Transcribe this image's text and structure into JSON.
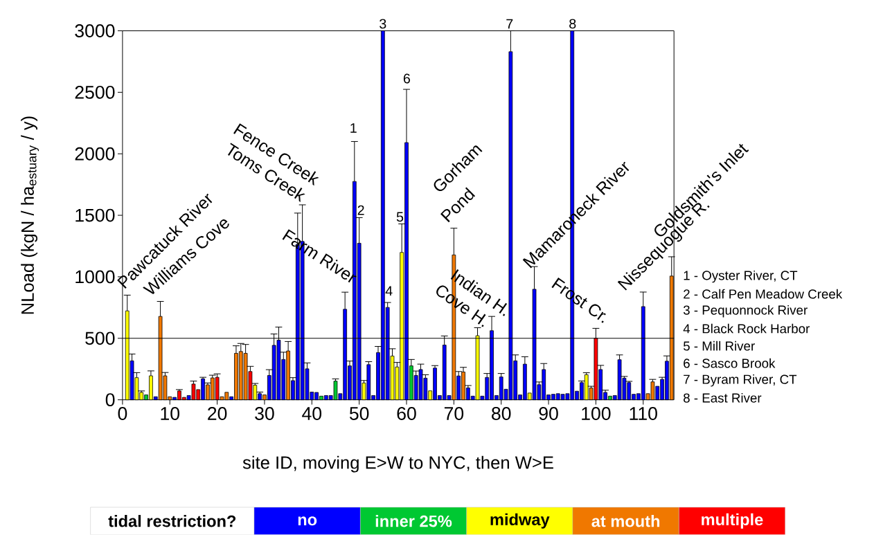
{
  "chart_data": {
    "type": "bar",
    "xlabel": "site ID, moving E>W to NYC, then W>E",
    "ylabel": "NLoad (kgN / ha$_{estuary}$ / y)",
    "legend_title": "tidal restriction?",
    "legend": "bottom",
    "xlim": [
      0,
      116.5
    ],
    "xticks": [
      0,
      10,
      20,
      30,
      40,
      50,
      60,
      70,
      80,
      90,
      100,
      110
    ],
    "ylim": [
      0,
      3000
    ],
    "yticks": [
      0,
      500,
      1000,
      1500,
      2000,
      2500,
      3000
    ],
    "ref_lines": [
      {
        "axis": "y",
        "value": 500,
        "color": "#000000"
      }
    ],
    "series": [
      {
        "name": "no",
        "color": "#0000ff",
        "x": [
          2,
          7,
          11,
          14,
          17,
          23,
          29,
          31,
          32,
          33,
          34,
          36,
          37,
          38,
          39,
          40,
          41,
          43,
          44,
          46,
          47,
          48,
          49,
          50,
          52,
          53,
          54,
          55,
          56,
          60,
          62,
          63,
          64,
          66,
          67,
          68,
          69,
          71,
          73,
          74,
          76,
          77,
          78,
          79,
          80,
          81,
          82,
          83,
          84,
          85,
          87,
          88,
          89,
          90,
          91,
          92,
          93,
          94,
          95,
          96,
          97,
          101,
          102,
          104,
          105,
          106,
          107,
          108,
          109,
          110,
          113,
          114,
          115
        ],
        "values": [
          317,
          25,
          20,
          35,
          171,
          25,
          50,
          198,
          443,
          485,
          328,
          156,
          1264,
          1288,
          252,
          63,
          60,
          35,
          35,
          50,
          736,
          276,
          1775,
          1273,
          286,
          35,
          384,
          3000,
          751,
          2091,
          198,
          246,
          176,
          258,
          35,
          445,
          35,
          194,
          97,
          30,
          30,
          182,
          562,
          35,
          186,
          86,
          2830,
          317,
          40,
          290,
          899,
          123,
          246,
          40,
          45,
          50,
          45,
          50,
          3000,
          70,
          140,
          246,
          60,
          35,
          326,
          176,
          140,
          45,
          50,
          758,
          110,
          166,
          314
        ],
        "errors": [
          55,
          null,
          null,
          null,
          12,
          null,
          13,
          47,
          92,
          106,
          59,
          24,
          254,
          297,
          48,
          null,
          null,
          null,
          null,
          null,
          139,
          39,
          325,
          208,
          24,
          null,
          50,
          null,
          40,
          433,
          36,
          44,
          28,
          20,
          null,
          74,
          null,
          36,
          19,
          null,
          null,
          32,
          116,
          null,
          28,
          null,
          170,
          48,
          null,
          60,
          184,
          22,
          49,
          null,
          null,
          null,
          null,
          null,
          null,
          null,
          13,
          34,
          18,
          null,
          39,
          14,
          10,
          null,
          null,
          118,
          null,
          17,
          43
        ]
      },
      {
        "name": "inner 25%",
        "color": "#00c832",
        "x": [
          5,
          42,
          45,
          61,
          103
        ],
        "values": [
          40,
          30,
          152,
          276,
          30
        ],
        "errors": [
          null,
          null,
          18,
          52,
          null
        ]
      },
      {
        "name": "midway",
        "color": "#ffff00",
        "x": [
          1,
          3,
          4,
          6,
          28,
          51,
          57,
          58,
          59,
          65,
          75,
          86,
          98
        ],
        "values": [
          723,
          180,
          60,
          195,
          119,
          137,
          356,
          267,
          1198,
          73,
          521,
          55,
          204
        ],
        "errors": [
          128,
          41,
          12,
          40,
          14,
          20,
          59,
          37,
          232,
          null,
          65,
          null,
          16
        ]
      },
      {
        "name": "at mouth",
        "color": "#f07800",
        "x": [
          8,
          9,
          10,
          18,
          19,
          21,
          22,
          24,
          25,
          26,
          30,
          35,
          70,
          72,
          99,
          111,
          112,
          116
        ],
        "values": [
          678,
          195,
          25,
          122,
          178,
          25,
          61,
          378,
          393,
          378,
          40,
          397,
          1178,
          226,
          96,
          50,
          146,
          1006
        ],
        "errors": [
          122,
          27,
          null,
          15,
          22,
          null,
          null,
          61,
          65,
          72,
          null,
          77,
          217,
          38,
          14,
          null,
          20,
          157
        ]
      },
      {
        "name": "multiple",
        "color": "#ff0000",
        "x": [
          12,
          13,
          15,
          16,
          20,
          27,
          100
        ],
        "values": [
          72,
          20,
          128,
          83,
          183,
          230,
          501
        ],
        "errors": [
          11,
          null,
          24,
          null,
          28,
          42,
          80
        ]
      }
    ],
    "annotations": [
      "Pawcatuck River",
      "Williams Cove",
      "Fence Creek",
      "Toms Creek",
      "Farm River",
      "1",
      "2",
      "3",
      "4",
      "5",
      "6",
      "7",
      "8",
      "Gorham",
      "Pond",
      "Indian H.",
      "Cove H.",
      "Mamaroneck River",
      "Frost Cr.",
      "Nissequogue R.",
      "Goldsmith's Inlet",
      "1 - Oyster River, CT",
      "2 - Calf Pen Meadow Creek",
      "3 - Pequonnock River",
      "4 - Black Rock Harbor",
      "5 - Mill River",
      "6 - Sasco Brook",
      "7 - Byram River, CT",
      "8 - East River"
    ]
  }
}
